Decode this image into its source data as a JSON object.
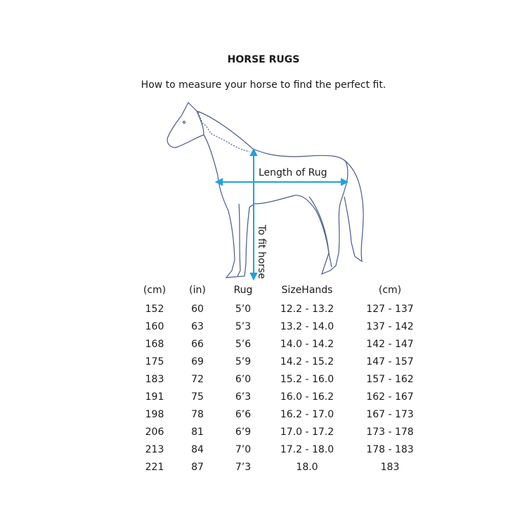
{
  "title": "HORSE RUGS",
  "subtitle": "How to measure your horse to find the perfect fit.",
  "diagram": {
    "length_label": "Length of Rug",
    "height_label": "To fit horse",
    "line_color": "#1aa3e0",
    "outline_color": "#4a5a8a"
  },
  "table": {
    "headers": [
      "(cm)",
      "(in)",
      "Rug",
      "SizeHands",
      "(cm)"
    ],
    "rows": [
      [
        "152",
        "60",
        "5’0",
        "12.2 - 13.2",
        "127 - 137"
      ],
      [
        "160",
        "63",
        "5’3",
        "13.2 - 14.0",
        "137 - 142"
      ],
      [
        "168",
        "66",
        "5’6",
        "14.0 - 14.2",
        "142 - 147"
      ],
      [
        "175",
        "69",
        "5’9",
        "14.2 - 15.2",
        "147 - 157"
      ],
      [
        "183",
        "72",
        "6’0",
        "15.2 - 16.0",
        "157 - 162"
      ],
      [
        "191",
        "75",
        "6’3",
        "16.0 - 16.2",
        "162 - 167"
      ],
      [
        "198",
        "78",
        "6’6",
        "16.2 - 17.0",
        "167 - 173"
      ],
      [
        "206",
        "81",
        "6’9",
        "17.0 - 17.2",
        "173 - 178"
      ],
      [
        "213",
        "84",
        "7’0",
        "17.2 - 18.0",
        "178 - 183"
      ],
      [
        "221",
        "87",
        "7’3",
        "18.0",
        "183"
      ]
    ]
  }
}
